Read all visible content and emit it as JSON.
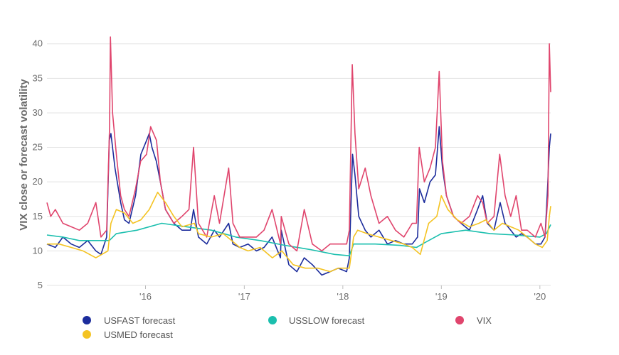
{
  "chart_data": {
    "type": "line",
    "title": "",
    "xlabel": "",
    "ylabel": "VIX close or forecast volatility",
    "xlim": [
      "2015-01-01",
      "2020-02-10"
    ],
    "ylim": [
      5,
      41
    ],
    "y_ticks": [
      5,
      10,
      15,
      20,
      25,
      30,
      35,
      40
    ],
    "x_ticks": [
      {
        "date": "2016-01-01",
        "label": "'16"
      },
      {
        "date": "2017-01-01",
        "label": "'17"
      },
      {
        "date": "2018-01-01",
        "label": "'18"
      },
      {
        "date": "2019-01-01",
        "label": "'19"
      },
      {
        "date": "2020-01-01",
        "label": "'20"
      }
    ],
    "grid": true,
    "legend_position": "bottom",
    "series": [
      {
        "name": "USFAST forecast",
        "color": "#1c2c9c",
        "x": [
          "2015-01-01",
          "2015-02-01",
          "2015-03-01",
          "2015-04-01",
          "2015-05-01",
          "2015-06-01",
          "2015-07-01",
          "2015-07-20",
          "2015-08-10",
          "2015-08-20",
          "2015-08-26",
          "2015-09-10",
          "2015-10-01",
          "2015-10-15",
          "2015-11-01",
          "2015-11-25",
          "2015-12-15",
          "2016-01-05",
          "2016-01-15",
          "2016-01-25",
          "2016-02-10",
          "2016-02-25",
          "2016-03-15",
          "2016-04-15",
          "2016-05-15",
          "2016-06-15",
          "2016-06-27",
          "2016-07-15",
          "2016-08-15",
          "2016-09-12",
          "2016-10-01",
          "2016-11-04",
          "2016-11-20",
          "2016-12-15",
          "2017-01-15",
          "2017-02-15",
          "2017-03-15",
          "2017-04-14",
          "2017-05-15",
          "2017-05-18",
          "2017-06-15",
          "2017-07-15",
          "2017-08-11",
          "2017-09-10",
          "2017-10-15",
          "2017-11-15",
          "2017-12-15",
          "2018-01-15",
          "2018-01-25",
          "2018-02-06",
          "2018-02-15",
          "2018-03-01",
          "2018-03-25",
          "2018-04-15",
          "2018-05-15",
          "2018-06-15",
          "2018-07-15",
          "2018-08-15",
          "2018-09-15",
          "2018-10-05",
          "2018-10-12",
          "2018-10-30",
          "2018-11-20",
          "2018-12-10",
          "2018-12-24",
          "2019-01-05",
          "2019-01-20",
          "2019-02-15",
          "2019-03-15",
          "2019-04-15",
          "2019-05-15",
          "2019-06-03",
          "2019-06-20",
          "2019-07-15",
          "2019-08-07",
          "2019-08-25",
          "2019-09-15",
          "2019-10-05",
          "2019-10-25",
          "2019-11-15",
          "2019-12-15",
          "2020-01-05",
          "2020-01-20",
          "2020-01-28",
          "2020-02-05",
          "2020-02-10"
        ],
        "values": [
          11,
          10.5,
          12,
          11,
          10.5,
          11.5,
          10,
          9.5,
          12,
          26,
          27,
          22,
          17,
          14.5,
          14,
          18,
          24,
          26,
          27,
          25,
          23,
          20,
          16,
          14,
          13,
          13,
          16,
          12,
          11,
          13,
          12,
          14,
          11,
          10.5,
          11,
          10,
          10.5,
          12,
          9,
          13,
          8,
          7,
          9,
          8,
          6.5,
          7,
          7.5,
          7,
          9,
          24,
          21,
          15,
          13,
          12,
          13,
          11,
          11.5,
          11,
          11,
          12,
          19,
          17,
          20,
          21,
          28,
          22,
          18,
          15,
          14,
          13,
          16,
          18,
          14,
          13,
          17,
          14,
          13,
          12,
          12.5,
          12,
          11,
          11,
          12,
          18,
          25,
          27
        ]
      },
      {
        "name": "USSLOW forecast",
        "color": "#1bbfae",
        "x": [
          "2015-01-01",
          "2015-03-01",
          "2015-05-01",
          "2015-07-01",
          "2015-08-20",
          "2015-09-15",
          "2015-12-01",
          "2016-03-01",
          "2016-06-01",
          "2016-09-01",
          "2016-12-01",
          "2017-03-01",
          "2017-06-01",
          "2017-09-01",
          "2017-12-01",
          "2018-01-25",
          "2018-02-10",
          "2018-05-01",
          "2018-08-01",
          "2018-10-01",
          "2018-11-01",
          "2019-01-01",
          "2019-04-01",
          "2019-07-01",
          "2019-10-01",
          "2020-01-01",
          "2020-01-25",
          "2020-02-10"
        ],
        "values": [
          12.3,
          12,
          11.5,
          11.5,
          11.5,
          12.5,
          13,
          14,
          13.5,
          13,
          12,
          11.5,
          10.8,
          10.2,
          9.5,
          9.3,
          11,
          11,
          10.8,
          10.5,
          11.2,
          12.5,
          13,
          12.5,
          12.3,
          12,
          12.5,
          13.8
        ]
      },
      {
        "name": "VIX",
        "color": "#e0456d",
        "x": [
          "2015-01-01",
          "2015-01-15",
          "2015-02-01",
          "2015-03-01",
          "2015-04-01",
          "2015-05-01",
          "2015-06-01",
          "2015-07-01",
          "2015-07-20",
          "2015-08-10",
          "2015-08-21",
          "2015-08-24",
          "2015-09-01",
          "2015-09-15",
          "2015-10-01",
          "2015-10-15",
          "2015-11-01",
          "2015-11-25",
          "2015-12-14",
          "2016-01-05",
          "2016-01-20",
          "2016-02-11",
          "2016-02-25",
          "2016-03-15",
          "2016-04-15",
          "2016-05-15",
          "2016-06-10",
          "2016-06-27",
          "2016-07-15",
          "2016-08-15",
          "2016-09-12",
          "2016-10-01",
          "2016-11-04",
          "2016-11-20",
          "2016-12-15",
          "2017-01-15",
          "2017-02-15",
          "2017-03-15",
          "2017-04-14",
          "2017-05-15",
          "2017-05-18",
          "2017-06-15",
          "2017-07-15",
          "2017-08-11",
          "2017-09-10",
          "2017-10-15",
          "2017-11-15",
          "2017-12-15",
          "2018-01-15",
          "2018-01-25",
          "2018-02-05",
          "2018-02-15",
          "2018-03-01",
          "2018-03-25",
          "2018-04-15",
          "2018-05-15",
          "2018-06-15",
          "2018-07-15",
          "2018-08-15",
          "2018-09-15",
          "2018-10-01",
          "2018-10-11",
          "2018-10-30",
          "2018-11-20",
          "2018-12-10",
          "2018-12-24",
          "2019-01-05",
          "2019-01-20",
          "2019-02-15",
          "2019-03-15",
          "2019-04-15",
          "2019-05-15",
          "2019-06-03",
          "2019-06-20",
          "2019-07-15",
          "2019-08-05",
          "2019-08-25",
          "2019-09-15",
          "2019-10-05",
          "2019-10-25",
          "2019-11-15",
          "2019-12-15",
          "2020-01-05",
          "2020-01-20",
          "2020-01-31",
          "2020-02-05",
          "2020-02-10"
        ],
        "values": [
          17,
          15,
          16,
          14,
          13.5,
          13,
          14,
          17,
          12,
          13,
          28,
          41,
          30,
          24,
          18,
          16,
          15,
          19,
          23,
          24,
          28,
          26,
          20,
          16,
          14,
          15,
          16,
          25,
          14,
          12,
          18,
          14,
          22,
          14,
          12,
          12,
          12,
          13,
          16,
          11,
          15,
          11,
          10,
          16,
          11,
          10,
          11,
          11,
          11,
          13,
          37,
          27,
          19,
          22,
          18,
          14,
          15,
          13,
          12,
          14,
          14,
          25,
          20,
          22,
          25,
          36,
          23,
          18,
          15,
          14,
          15,
          18,
          17,
          14,
          15,
          24,
          18,
          15,
          18,
          13,
          13,
          12,
          14,
          12,
          18,
          40,
          33
        ]
      },
      {
        "name": "USMED forecast",
        "color": "#f4c322",
        "x": [
          "2015-01-01",
          "2015-02-15",
          "2015-04-01",
          "2015-05-15",
          "2015-07-01",
          "2015-08-15",
          "2015-08-26",
          "2015-09-15",
          "2015-10-15",
          "2015-11-15",
          "2015-12-15",
          "2016-01-15",
          "2016-02-15",
          "2016-03-15",
          "2016-04-15",
          "2016-05-15",
          "2016-06-30",
          "2016-07-15",
          "2016-09-01",
          "2016-10-15",
          "2016-11-15",
          "2016-12-15",
          "2017-01-15",
          "2017-03-01",
          "2017-04-15",
          "2017-05-20",
          "2017-07-01",
          "2017-08-15",
          "2017-10-01",
          "2017-11-15",
          "2017-12-15",
          "2018-01-25",
          "2018-02-10",
          "2018-02-25",
          "2018-04-01",
          "2018-05-15",
          "2018-07-01",
          "2018-08-15",
          "2018-09-15",
          "2018-10-15",
          "2018-11-15",
          "2018-12-15",
          "2019-01-01",
          "2019-01-25",
          "2019-03-01",
          "2019-04-15",
          "2019-05-20",
          "2019-06-15",
          "2019-07-15",
          "2019-08-15",
          "2019-09-15",
          "2019-10-15",
          "2019-11-15",
          "2019-12-15",
          "2020-01-10",
          "2020-01-28",
          "2020-02-05",
          "2020-02-10"
        ],
        "values": [
          11,
          11,
          10.5,
          10,
          9,
          10,
          14,
          16,
          15.5,
          14,
          14.5,
          16,
          18.5,
          17,
          15,
          13.5,
          14,
          12.5,
          12,
          12.5,
          11.5,
          10.5,
          10,
          10.5,
          9,
          10,
          8,
          7.5,
          7.5,
          7,
          7.5,
          7.5,
          12,
          13,
          12.5,
          12,
          11.5,
          11,
          10.5,
          9.5,
          14,
          15,
          18,
          16,
          14.5,
          13.5,
          14,
          14.5,
          13,
          14,
          13.5,
          13,
          12,
          11,
          10.5,
          11.5,
          15,
          16.5
        ]
      }
    ]
  },
  "legend": {
    "items": [
      {
        "label": "USFAST forecast",
        "color": "#1c2c9c"
      },
      {
        "label": "USSLOW forecast",
        "color": "#1bbfae"
      },
      {
        "label": "VIX",
        "color": "#e0456d"
      },
      {
        "label": "USMED forecast",
        "color": "#f4c322"
      }
    ]
  }
}
